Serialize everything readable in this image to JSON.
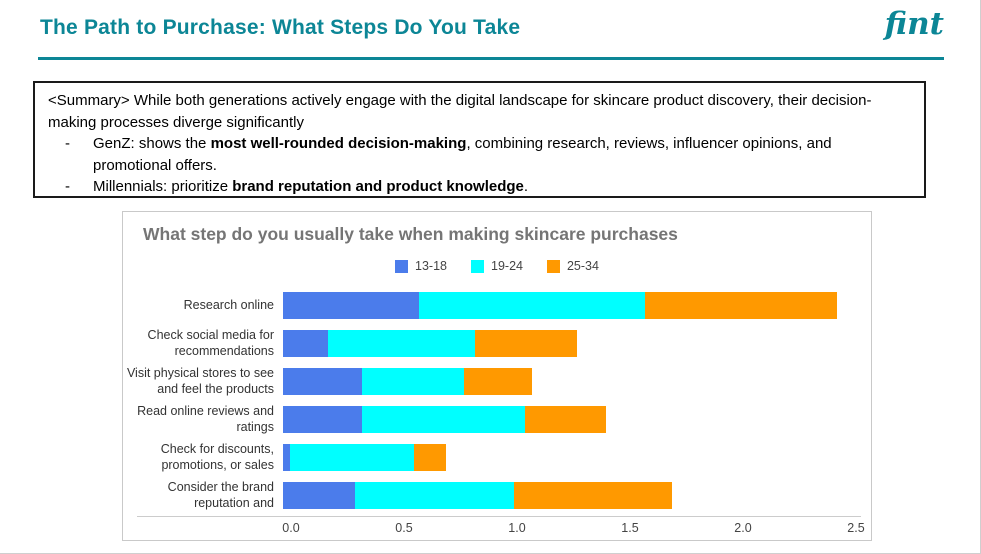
{
  "header": {
    "title": "The Path to Purchase: What Steps Do You Take",
    "logo_text": "fint"
  },
  "summary": {
    "intro": "<Summary> While both generations actively engage with the digital landscape for skincare product discovery, their decision-making processes diverge significantly",
    "bullets": [
      {
        "dash": "-",
        "prefix": "GenZ: shows the ",
        "bold": "most well-rounded decision-making",
        "suffix": ", combining research, reviews, influencer opinions, and promotional offers."
      },
      {
        "dash": "-",
        "prefix": "Millennials: prioritize ",
        "bold": "brand reputation and product knowledge",
        "suffix": "."
      }
    ]
  },
  "chart_data": {
    "type": "bar",
    "orientation": "horizontal",
    "stacked": true,
    "title": "What step do you usually take when making skincare purchases",
    "categories": [
      "Research online",
      "Check social media for\nrecommendations",
      "Visit physical stores to see\nand feel the products",
      "Read online reviews and\nratings",
      "Check for discounts,\npromotions, or sales",
      "Consider the brand\nreputation and"
    ],
    "series": [
      {
        "name": "13-18",
        "color": "#4B7CEB",
        "values": [
          0.6,
          0.2,
          0.35,
          0.35,
          0.03,
          0.32
        ]
      },
      {
        "name": "19-24",
        "color": "#00FFFF",
        "values": [
          1.0,
          0.65,
          0.45,
          0.72,
          0.55,
          0.7
        ]
      },
      {
        "name": "25-34",
        "color": "#FF9900",
        "values": [
          0.85,
          0.45,
          0.3,
          0.36,
          0.14,
          0.7
        ]
      }
    ],
    "totals": [
      2.45,
      1.3,
      1.1,
      1.43,
      0.72,
      1.72
    ],
    "xlim": [
      0,
      2.5
    ],
    "xtick_labels": [
      "0.0",
      "0.5",
      "1.0",
      "1.5",
      "2.0",
      "2.5"
    ],
    "legend_position": "top",
    "grid": false,
    "title_color": "#757575"
  },
  "colors": {
    "accent_teal": "#0C8696",
    "series_blue": "#4B7CEB",
    "series_cyan": "#00FFFF",
    "series_orange": "#FF9900",
    "chart_border": "#C9C9C9"
  }
}
